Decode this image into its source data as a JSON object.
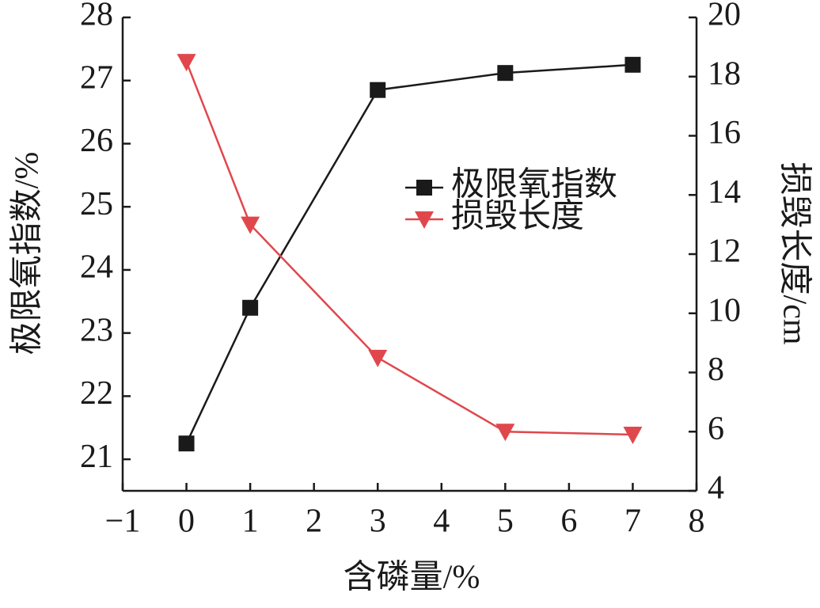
{
  "chart_data": {
    "type": "line",
    "x_label": "含磷量/%",
    "y_label": "极限氧指数/%",
    "y2_label": "损毁长度/cm",
    "x": [
      0,
      1,
      3,
      5,
      7
    ],
    "series": [
      {
        "name": "极限氧指数",
        "color": "#1a1a1a",
        "marker": "square",
        "values": [
          21.25,
          23.4,
          26.85,
          27.12,
          27.25
        ]
      },
      {
        "name": "损毁长度",
        "color": "#e0474c",
        "marker": "triangle-down",
        "axis": "y2",
        "values": [
          18.5,
          13.0,
          8.5,
          6.0,
          5.9
        ]
      }
    ],
    "xlim": [
      -1,
      8
    ],
    "xticks": [
      {
        "value": -1,
        "label": "−1"
      },
      0,
      1,
      2,
      3,
      4,
      5,
      6,
      7,
      8
    ],
    "ylim": [
      20.5,
      28
    ],
    "yticks": [
      21,
      22,
      23,
      24,
      25,
      26,
      27,
      28
    ],
    "y2lim": [
      4,
      20
    ],
    "y2ticks": [
      4,
      6,
      8,
      10,
      12,
      14,
      16,
      18,
      20
    ]
  }
}
